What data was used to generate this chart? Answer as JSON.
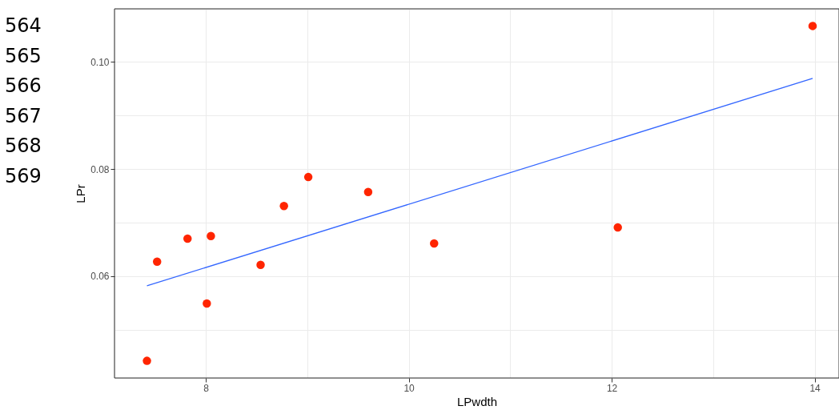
{
  "chart_data": {
    "type": "scatter",
    "xlabel": "LPwdth",
    "ylabel": "LPr",
    "xlim": [
      7.1,
      14.24
    ],
    "ylim": [
      0.041,
      0.1099
    ],
    "xticks": [
      8,
      {
        "value": 9,
        "label": null
      },
      10,
      {
        "value": 11,
        "label": null
      },
      12,
      {
        "value": 13,
        "label": null
      },
      14
    ],
    "yticks": [
      {
        "value": 0.05,
        "label": null
      },
      {
        "value": 0.06,
        "label": "0.06"
      },
      {
        "value": 0.07,
        "label": null
      },
      {
        "value": 0.08,
        "label": "0.08"
      },
      {
        "value": 0.09,
        "label": null
      },
      {
        "value": 0.1,
        "label": "0.10"
      }
    ],
    "grid": true,
    "marker": "circle",
    "series": [
      {
        "color": "#ff2500",
        "x": [
          7.42,
          7.52,
          7.82,
          8.01,
          8.05,
          8.54,
          8.77,
          9.01,
          9.6,
          10.25,
          12.06,
          13.98
        ],
        "values": [
          0.0442,
          0.0627,
          0.067,
          0.0549,
          0.0675,
          0.0621,
          0.0731,
          0.0785,
          0.0757,
          0.0661,
          0.0691,
          0.1067
        ]
      },
      {
        "type": "line",
        "color": "#3366ff",
        "x": [
          7.42,
          13.98
        ],
        "values": [
          0.0582,
          0.0969
        ],
        "line_style": "solid",
        "marker": "none"
      }
    ],
    "annotations": [
      "564",
      "565",
      "566",
      "567",
      "568",
      "569"
    ]
  }
}
